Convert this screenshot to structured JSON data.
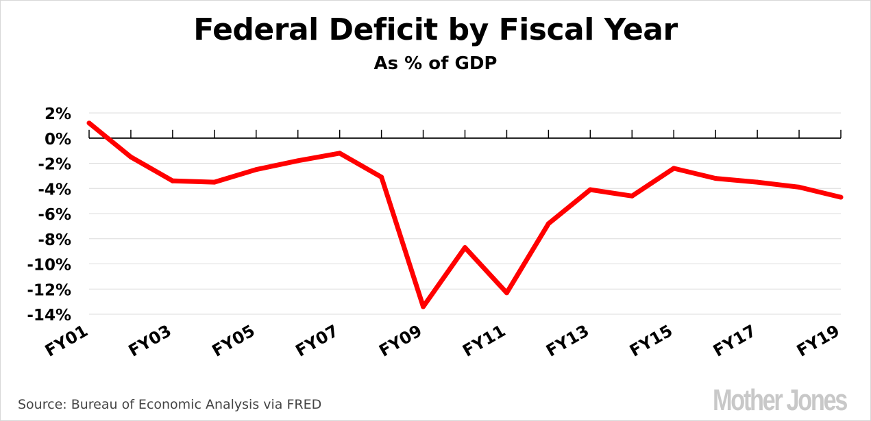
{
  "chart_data": {
    "type": "line",
    "title": "Federal Deficit by Fiscal Year",
    "subtitle": "As % of GDP",
    "xlabel": "",
    "ylabel": "",
    "categories": [
      "FY01",
      "FY02",
      "FY03",
      "FY04",
      "FY05",
      "FY06",
      "FY07",
      "FY08",
      "FY09",
      "FY10",
      "FY11",
      "FY12",
      "FY13",
      "FY14",
      "FY15",
      "FY16",
      "FY17",
      "FY18",
      "FY19"
    ],
    "x_tick_labels": [
      "FY01",
      "FY03",
      "FY05",
      "FY07",
      "FY09",
      "FY11",
      "FY13",
      "FY15",
      "FY17",
      "FY19"
    ],
    "y_tick_labels": [
      "2%",
      "0%",
      "-2%",
      "-4%",
      "-6%",
      "-8%",
      "-10%",
      "-12%",
      "-14%"
    ],
    "ylim": [
      -14,
      2
    ],
    "yticks": [
      2,
      0,
      -2,
      -4,
      -6,
      -8,
      -10,
      -12,
      -14
    ],
    "grid": true,
    "series": [
      {
        "values": [
          1.2,
          -1.5,
          -3.4,
          -3.5,
          -2.5,
          -1.8,
          -1.2,
          -3.1,
          -13.4,
          -8.7,
          -12.3,
          -6.8,
          -4.1,
          -4.6,
          -2.4,
          -3.2,
          -3.5,
          -3.9,
          -4.7
        ],
        "color": "#ff0000"
      }
    ]
  },
  "source": "Source: Bureau of Economic Analysis via FRED",
  "logo": "Mother Jones"
}
